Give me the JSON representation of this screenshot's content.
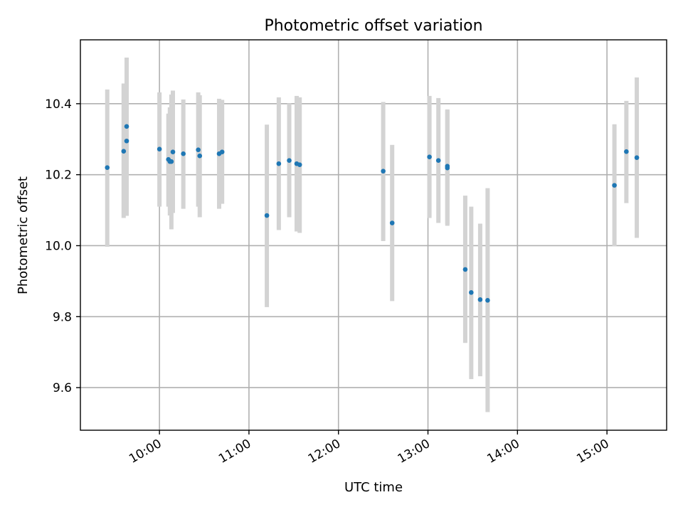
{
  "chart_data": {
    "type": "scatter",
    "title": "Photometric offset variation",
    "xlabel": "UTC time",
    "ylabel": "Photometric offset",
    "x_axis": "time",
    "xlim": [
      "09:07",
      "15:40"
    ],
    "ylim": [
      9.48,
      10.58
    ],
    "xticks": [
      "10:00",
      "11:00",
      "12:00",
      "13:00",
      "14:00",
      "15:00"
    ],
    "yticks": [
      9.6,
      9.8,
      10.0,
      10.2,
      10.4
    ],
    "grid": true,
    "colors": {
      "point": "#1f77b4",
      "errorbar": "#d3d3d3",
      "grid": "#b0b0b0"
    },
    "points": [
      {
        "time": "09:25",
        "y": 10.22,
        "low": 9.997,
        "high": 10.44
      },
      {
        "time": "09:36",
        "y": 10.266,
        "low": 10.078,
        "high": 10.457
      },
      {
        "time": "09:38",
        "y": 10.336,
        "low": 10.084,
        "high": 10.53
      },
      {
        "time": "09:38",
        "y": 10.295,
        "low": 10.143,
        "high": 10.51
      },
      {
        "time": "10:00",
        "y": 10.272,
        "low": 10.11,
        "high": 10.432
      },
      {
        "time": "10:06",
        "y": 10.243,
        "low": 10.11,
        "high": 10.372
      },
      {
        "time": "10:07",
        "y": 10.237,
        "low": 10.085,
        "high": 10.39
      },
      {
        "time": "10:08",
        "y": 10.237,
        "low": 10.046,
        "high": 10.426
      },
      {
        "time": "10:09",
        "y": 10.264,
        "low": 10.092,
        "high": 10.437
      },
      {
        "time": "10:16",
        "y": 10.259,
        "low": 10.104,
        "high": 10.412
      },
      {
        "time": "10:26",
        "y": 10.27,
        "low": 10.11,
        "high": 10.432
      },
      {
        "time": "10:27",
        "y": 10.253,
        "low": 10.08,
        "high": 10.424
      },
      {
        "time": "10:40",
        "y": 10.259,
        "low": 10.104,
        "high": 10.414
      },
      {
        "time": "10:42",
        "y": 10.264,
        "low": 10.118,
        "high": 10.411
      },
      {
        "time": "11:12",
        "y": 10.085,
        "low": 9.827,
        "high": 10.341
      },
      {
        "time": "11:20",
        "y": 10.231,
        "low": 10.044,
        "high": 10.418
      },
      {
        "time": "11:27",
        "y": 10.24,
        "low": 10.08,
        "high": 10.401
      },
      {
        "time": "11:32",
        "y": 10.231,
        "low": 10.04,
        "high": 10.422
      },
      {
        "time": "11:34",
        "y": 10.228,
        "low": 10.036,
        "high": 10.418
      },
      {
        "time": "12:30",
        "y": 10.21,
        "low": 10.013,
        "high": 10.405
      },
      {
        "time": "12:36",
        "y": 10.064,
        "low": 9.844,
        "high": 10.284
      },
      {
        "time": "13:01",
        "y": 10.25,
        "low": 10.078,
        "high": 10.422
      },
      {
        "time": "13:07",
        "y": 10.24,
        "low": 10.064,
        "high": 10.416
      },
      {
        "time": "13:13",
        "y": 10.224,
        "low": 10.06,
        "high": 10.384
      },
      {
        "time": "13:13",
        "y": 10.219,
        "low": 10.056,
        "high": 10.382
      },
      {
        "time": "13:25",
        "y": 9.933,
        "low": 9.726,
        "high": 10.141
      },
      {
        "time": "13:29",
        "y": 9.868,
        "low": 9.624,
        "high": 10.11
      },
      {
        "time": "13:35",
        "y": 9.848,
        "low": 9.632,
        "high": 10.062
      },
      {
        "time": "13:40",
        "y": 9.846,
        "low": 9.531,
        "high": 10.162
      },
      {
        "time": "15:05",
        "y": 10.17,
        "low": 9.998,
        "high": 10.342
      },
      {
        "time": "15:13",
        "y": 10.265,
        "low": 10.12,
        "high": 10.408
      },
      {
        "time": "15:20",
        "y": 10.248,
        "low": 10.022,
        "high": 10.474
      }
    ]
  }
}
